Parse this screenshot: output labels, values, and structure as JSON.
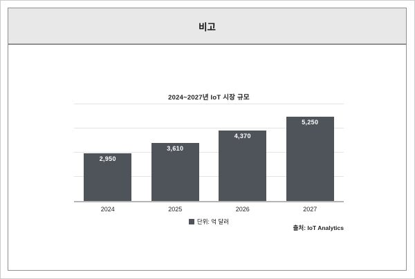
{
  "panel": {
    "header": "비고"
  },
  "chart_data": {
    "type": "bar",
    "title": "2024~2027년 IoT 시장 규모",
    "categories": [
      "2024",
      "2025",
      "2026",
      "2027"
    ],
    "values": [
      2950,
      3610,
      4370,
      5250
    ],
    "value_labels": [
      "2,950",
      "3,610",
      "4,370",
      "5,250"
    ],
    "xlabel": "",
    "ylabel": "",
    "ylim": [
      0,
      6000
    ],
    "gridline_interval": 1500,
    "grid": true,
    "y_axis_labels_visible": false,
    "legend_position": "bottom-center",
    "legend_label": "단위: 억 달러",
    "source": "출처: IoT Analytics"
  },
  "colors": {
    "bar": "#4f545b",
    "header_background": "#e8e8e8",
    "panel_border": "#8f8f8f",
    "gridline": "#e3e3e3",
    "axis_line": "#b4b4b4",
    "value_label_text": "#ffffff"
  }
}
